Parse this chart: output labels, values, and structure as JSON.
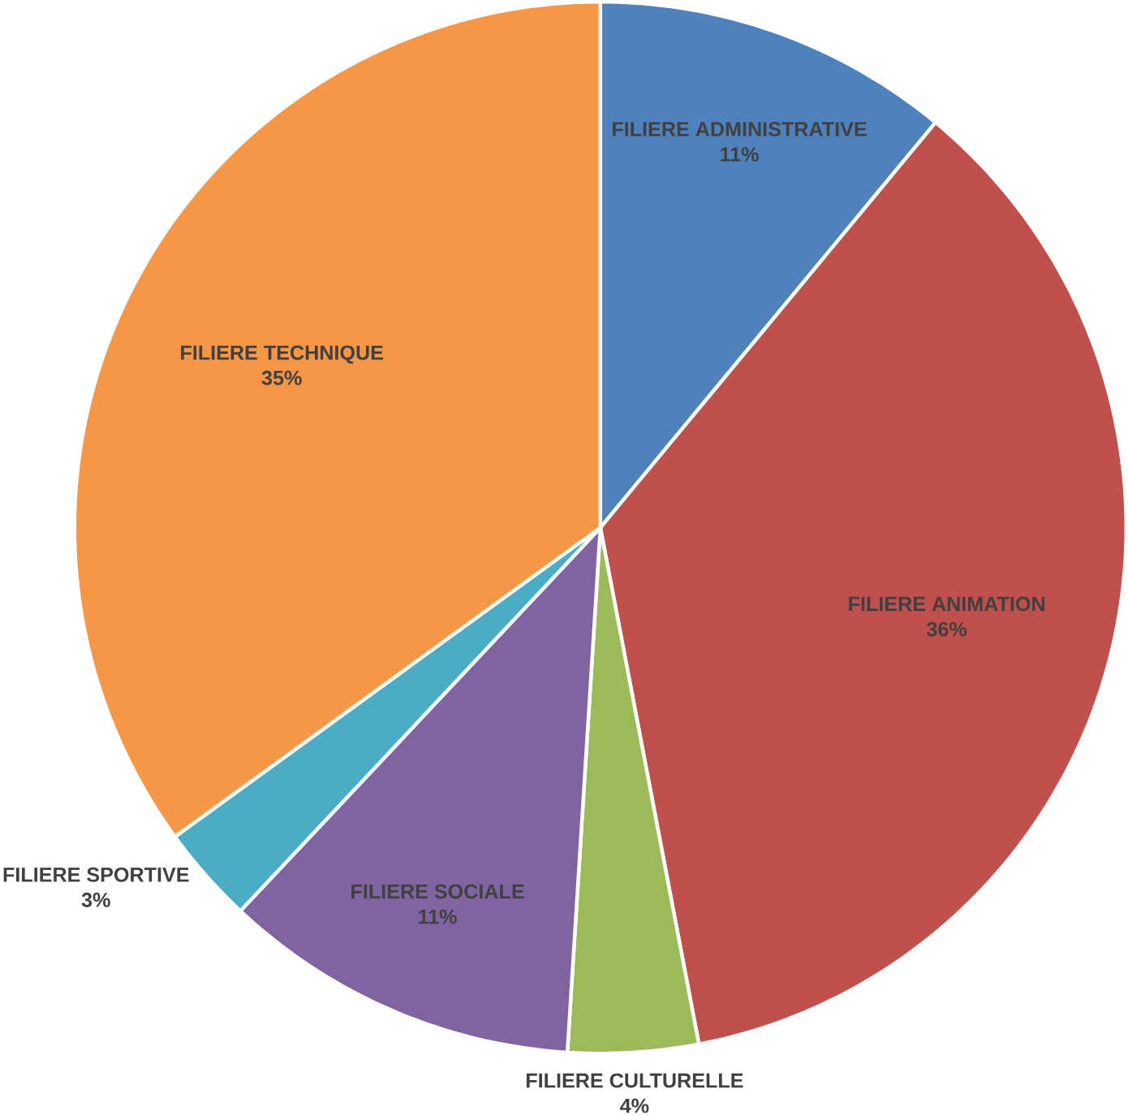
{
  "chart_data": {
    "type": "pie",
    "categories": [
      "FILIERE ADMINISTRATIVE",
      "FILIERE ANIMATION",
      "FILIERE CULTURELLE",
      "FILIERE SOCIALE",
      "FILIERE SPORTIVE",
      "FILIERE TECHNIQUE"
    ],
    "values": [
      11,
      36,
      4,
      11,
      3,
      35
    ],
    "value_labels": [
      "11%",
      "36%",
      "4%",
      "11%",
      "3%",
      "35%"
    ],
    "colors": [
      "#4f81bd",
      "#c0504d",
      "#9bbb59",
      "#8064a2",
      "#4bacc6",
      "#f79646"
    ]
  }
}
